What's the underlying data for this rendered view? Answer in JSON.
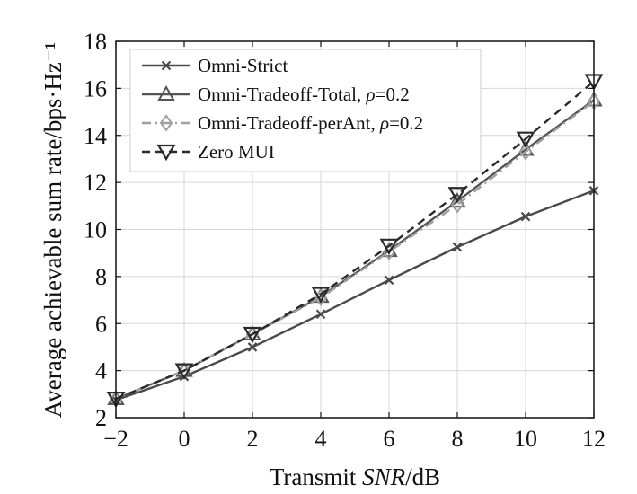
{
  "chart_data": {
    "type": "line",
    "title": "",
    "xlabel": "Transmit SNR/dB",
    "xlabel_parts": [
      "Transmit ",
      "SNR",
      "/dB"
    ],
    "ylabel": "Average achievable sum rate/bps·Hz⁻¹",
    "xlim": [
      -2,
      12
    ],
    "ylim": [
      2,
      18
    ],
    "xticks": [
      -2,
      0,
      2,
      4,
      6,
      8,
      10,
      12
    ],
    "xtick_labels": [
      "−2",
      "0",
      "2",
      "4",
      "6",
      "8",
      "10",
      "12"
    ],
    "yticks": [
      2,
      4,
      6,
      8,
      10,
      12,
      14,
      16,
      18
    ],
    "ytick_labels": [
      "2",
      "4",
      "6",
      "8",
      "10",
      "12",
      "14",
      "16",
      "18"
    ],
    "grid": true,
    "legend_position": "top-left",
    "x": [
      -2,
      0,
      2,
      4,
      6,
      8,
      10,
      12
    ],
    "series": [
      {
        "name": "Omni-Strict",
        "label_parts": [
          "Omni-Strict"
        ],
        "color": "#4a4a4a",
        "dash": "solid",
        "marker": "x",
        "values": [
          2.75,
          3.75,
          5.0,
          6.4,
          7.85,
          9.25,
          10.55,
          11.65
        ]
      },
      {
        "name": "Omni-Tradeoff-Total, ρ=0.2",
        "label_parts": [
          "Omni-Tradeoff-Total, ",
          "ρ",
          "=0.2"
        ],
        "color": "#555555",
        "dash": "solid",
        "marker": "triangle-up",
        "values": [
          2.8,
          4.0,
          5.55,
          7.15,
          9.1,
          11.2,
          13.4,
          15.5
        ]
      },
      {
        "name": "Omni-Tradeoff-perAnt, ρ=0.2",
        "label_parts": [
          "Omni-Tradeoff-perAnt, ",
          "ρ",
          "=0.2"
        ],
        "color": "#a0a0a0",
        "dash": "dashdot",
        "marker": "diamond",
        "values": [
          2.8,
          4.0,
          5.55,
          7.1,
          9.05,
          11.05,
          13.3,
          15.45
        ]
      },
      {
        "name": "Zero MUI",
        "label_parts": [
          "Zero MUI"
        ],
        "color": "#2a2a2a",
        "dash": "dashed",
        "marker": "triangle-down",
        "values": [
          2.8,
          4.0,
          5.55,
          7.25,
          9.3,
          11.5,
          13.85,
          16.3
        ]
      }
    ]
  }
}
